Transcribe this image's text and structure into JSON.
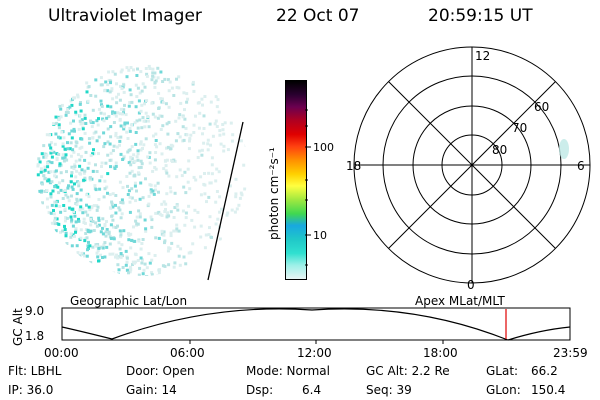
{
  "header": {
    "title": "Ultraviolet Imager",
    "date": "22 Oct 07",
    "time": "20:59:15 UT"
  },
  "colorbar": {
    "unit_label": "photon cm⁻²s⁻¹",
    "ticks": [
      "100",
      "10"
    ],
    "colors": [
      "#e8f4f4",
      "#9cf0e8",
      "#30e0d0",
      "#20c8c8",
      "#18a8e0",
      "#40d850",
      "#a0e840",
      "#ffff40",
      "#ffd000",
      "#ff9000",
      "#ff4010",
      "#e00000",
      "#b00020",
      "#6a0050",
      "#2a0030",
      "#000000"
    ]
  },
  "polar": {
    "hour_labels": {
      "top": "12",
      "left": "18",
      "right": "6",
      "bottom": "0"
    },
    "lat_labels": [
      "60",
      "70",
      "80"
    ]
  },
  "strip": {
    "left_label": "Geographic Lat/Lon",
    "right_label": "Apex MLat/MLT",
    "yaxis_label": "GC Alt",
    "ymax": "9.0",
    "ymin": "1.8",
    "xticks": [
      "00:00",
      "06:00",
      "12:00",
      "18:00",
      "23:59"
    ],
    "marker_color": "#e00000"
  },
  "info": {
    "flt": "Flt: LBHL",
    "ip": "IP: 36.0",
    "door": "Door: Open",
    "gain": "Gain: 14",
    "mode": "Mode: Normal",
    "dsp": "Dsp:",
    "dsp_val": "6.4",
    "gcalt": "GC Alt: 2.2 Re",
    "seq": "Seq: 39",
    "glat": "GLat:",
    "glat_val": "66.2",
    "glon": "GLon:",
    "glon_val": "150.4"
  }
}
